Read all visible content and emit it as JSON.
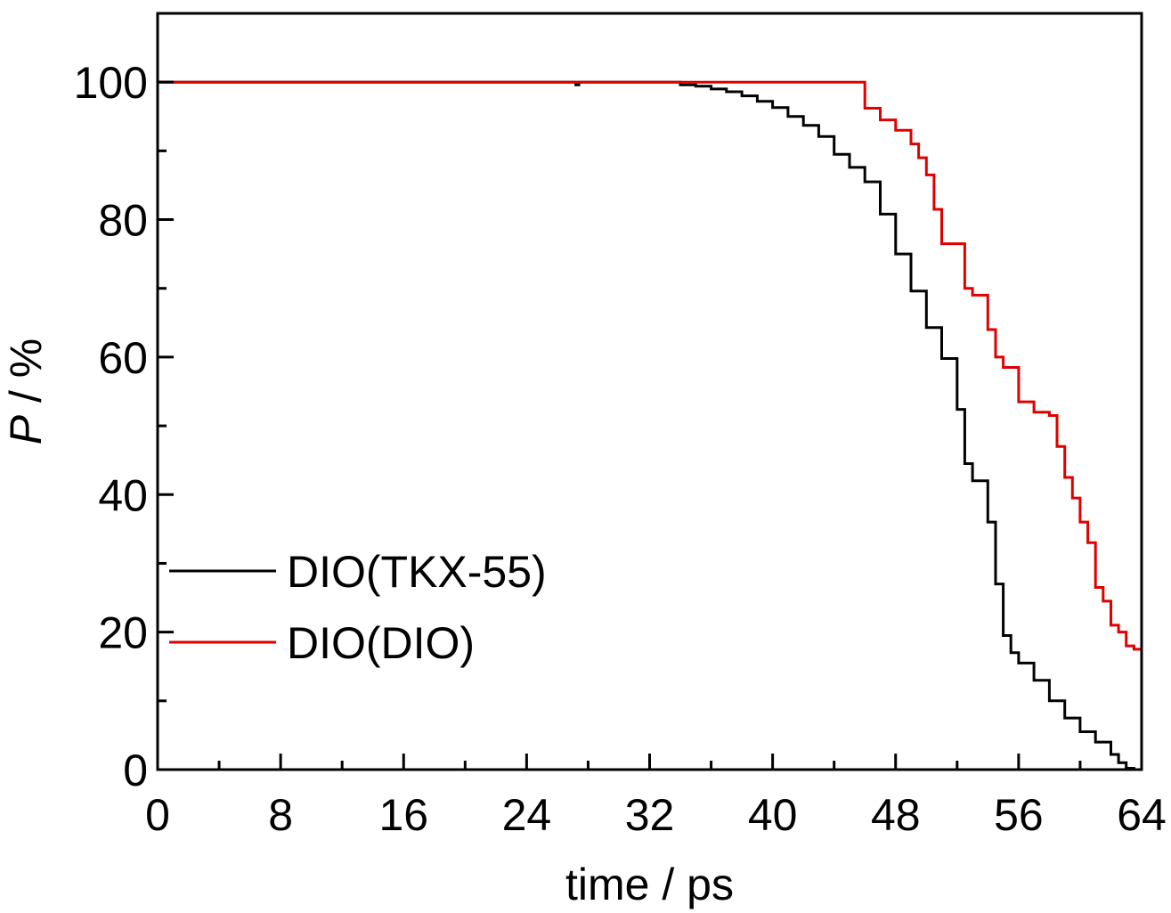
{
  "chart_data": {
    "type": "line",
    "xlabel": "time / ps",
    "ylabel_italic": "P",
    "ylabel_rest": " / %",
    "xlim": [
      0,
      64
    ],
    "ylim": [
      0,
      110
    ],
    "x_ticks": [
      0,
      8,
      16,
      24,
      32,
      40,
      48,
      56,
      64
    ],
    "x_tick_labels": [
      "0",
      "8",
      "16",
      "24",
      "32",
      "40",
      "48",
      "56",
      "64"
    ],
    "x_minor_ticks": [
      4,
      12,
      20,
      28,
      36,
      44,
      52,
      60
    ],
    "y_ticks": [
      0,
      20,
      40,
      60,
      80,
      100
    ],
    "y_tick_labels": [
      "0",
      "20",
      "40",
      "60",
      "80",
      "100"
    ],
    "y_minor_ticks": [
      10,
      30,
      50,
      70,
      90
    ],
    "grid": false,
    "legend_position": "lower-left",
    "series": [
      {
        "name": "DIO(TKX-55)",
        "color": "#000000",
        "points": [
          [
            0,
            100
          ],
          [
            27,
            100
          ],
          [
            27.2,
            99.6
          ],
          [
            27.4,
            100
          ],
          [
            32,
            100
          ],
          [
            34,
            99.6
          ],
          [
            35,
            99.4
          ],
          [
            36,
            99.0
          ],
          [
            37,
            98.6
          ],
          [
            38,
            98.0
          ],
          [
            39,
            97.2
          ],
          [
            40,
            96.3
          ],
          [
            41,
            95.0
          ],
          [
            42,
            93.7
          ],
          [
            43,
            92.1
          ],
          [
            44,
            89.5
          ],
          [
            45,
            87.6
          ],
          [
            46,
            85.5
          ],
          [
            47,
            80.8
          ],
          [
            48,
            75.0
          ],
          [
            49,
            69.6
          ],
          [
            50,
            64.3
          ],
          [
            51,
            59.8
          ],
          [
            52,
            52.4
          ],
          [
            52.5,
            44.5
          ],
          [
            53,
            42.0
          ],
          [
            54,
            36.0
          ],
          [
            54.5,
            27.0
          ],
          [
            55,
            19.5
          ],
          [
            55.5,
            17.0
          ],
          [
            56,
            15.5
          ],
          [
            57,
            13.0
          ],
          [
            58,
            10.0
          ],
          [
            59,
            7.5
          ],
          [
            60,
            5.5
          ],
          [
            61,
            4.0
          ],
          [
            62,
            2.2
          ],
          [
            62.5,
            1.0
          ],
          [
            63,
            0.2
          ],
          [
            63.5,
            0
          ]
        ]
      },
      {
        "name": "DIO(DIO)",
        "color": "#e00000",
        "points": [
          [
            0,
            100
          ],
          [
            45.5,
            100
          ],
          [
            46,
            96.2
          ],
          [
            47,
            94.5
          ],
          [
            48,
            93.0
          ],
          [
            49,
            91.0
          ],
          [
            49.5,
            89.0
          ],
          [
            50,
            86.5
          ],
          [
            50.5,
            81.5
          ],
          [
            51,
            76.5
          ],
          [
            52,
            76.5
          ],
          [
            52.5,
            70.0
          ],
          [
            53,
            69.0
          ],
          [
            54,
            64.0
          ],
          [
            54.5,
            60.0
          ],
          [
            55,
            58.5
          ],
          [
            56,
            53.5
          ],
          [
            57,
            52.0
          ],
          [
            58,
            51.5
          ],
          [
            58.5,
            47.0
          ],
          [
            59,
            42.5
          ],
          [
            59.5,
            39.5
          ],
          [
            60,
            36.0
          ],
          [
            60.5,
            33.0
          ],
          [
            61,
            26.5
          ],
          [
            61.5,
            24.5
          ],
          [
            62,
            21.0
          ],
          [
            62.5,
            20.0
          ],
          [
            63,
            18.0
          ],
          [
            63.5,
            17.5
          ],
          [
            64,
            15.0
          ]
        ]
      }
    ]
  }
}
